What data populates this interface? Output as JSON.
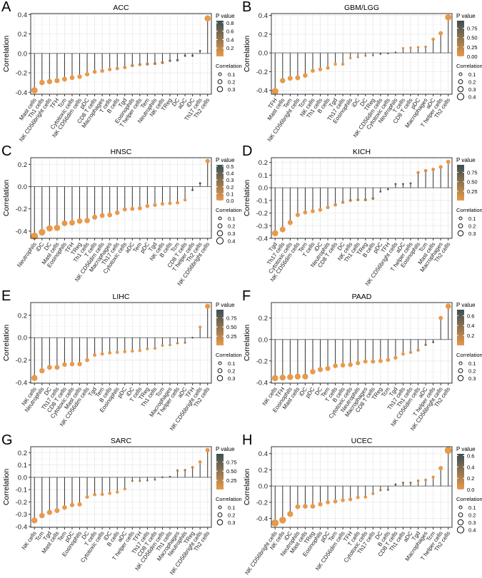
{
  "chart_data": [
    {
      "type": "scatter",
      "subtype": "lollipop",
      "letter": "A",
      "title": "ACC",
      "ylabel": "Correlation",
      "ylim": [
        -0.42,
        0.41
      ],
      "yticks": [
        -0.4,
        -0.2,
        0.0,
        0.2,
        0.4
      ],
      "categories": [
        "Mast cells",
        "Th1 cells",
        "NK CD56bright cells",
        "TFH",
        "Tcm",
        "Cytotoxic cells",
        "NK CD56dim cells",
        "pDC",
        "CD8 T cells",
        "Macrophages",
        "T cells",
        "B cells",
        "Tgd",
        "Eosinophils",
        "T helper cells",
        "Tem",
        "Neutrophils",
        "NK cells",
        "TReg",
        "DC",
        "aDC",
        "iDC",
        "Th17 cells",
        "Th2 cells"
      ],
      "values": [
        -0.38,
        -0.3,
        -0.29,
        -0.28,
        -0.265,
        -0.25,
        -0.24,
        -0.215,
        -0.19,
        -0.18,
        -0.165,
        -0.155,
        -0.145,
        -0.125,
        -0.115,
        -0.11,
        -0.105,
        -0.095,
        -0.075,
        -0.07,
        -0.025,
        -0.025,
        0.025,
        0.36
      ],
      "p_values": [
        0,
        0,
        0,
        0,
        0,
        0,
        0,
        0,
        0,
        0,
        0.01,
        0.02,
        0.05,
        0.15,
        0.2,
        0.25,
        0.25,
        0.3,
        0.45,
        0.5,
        0.8,
        0.8,
        0.75,
        0
      ],
      "p_legend": {
        "title": "P value",
        "max": 0.85,
        "ticks": [
          0.2,
          0.4,
          0.6,
          0.8
        ]
      },
      "size_legend": {
        "title": "Correlation",
        "values": [
          0.1,
          0.2,
          0.3
        ]
      }
    },
    {
      "type": "scatter",
      "subtype": "lollipop",
      "letter": "B",
      "title": "GBM/LGG",
      "ylabel": "Correlation",
      "ylim": [
        -0.44,
        0.42
      ],
      "yticks": [
        -0.4,
        -0.2,
        0.0,
        0.2,
        0.4
      ],
      "categories": [
        "TFH",
        "Mast cells",
        "Tem",
        "NK CD56bright cells",
        "Tcm",
        "NK cells",
        "Th1 cells",
        "B cells",
        "Tgd",
        "Th17 cells",
        "Eosinophils",
        "iDC",
        "DC",
        "TReg",
        "NK CD56dim cells",
        "Cytotoxic cells",
        "Neutrophils",
        "T cells",
        "CD8 T cells",
        "pDC",
        "Macrophages",
        "aDC",
        "T helper cells",
        "Th2 cells"
      ],
      "values": [
        -0.41,
        -0.295,
        -0.27,
        -0.265,
        -0.24,
        -0.19,
        -0.175,
        -0.16,
        -0.12,
        -0.12,
        -0.055,
        -0.045,
        -0.03,
        -0.025,
        -0.01,
        -0.005,
        0.005,
        0.05,
        0.055,
        0.06,
        0.065,
        0.145,
        0.21,
        0.38
      ],
      "p_values": [
        0,
        0,
        0,
        0,
        0,
        0,
        0,
        0,
        0,
        0,
        0.1,
        0.15,
        0.3,
        0.4,
        0.85,
        0.85,
        0.9,
        0.1,
        0.1,
        0.1,
        0.1,
        0,
        0,
        0
      ],
      "p_legend": {
        "title": "P value",
        "max": 0.95,
        "ticks": [
          0.0,
          0.25,
          0.5,
          0.75
        ]
      },
      "size_legend": {
        "title": "Correlation",
        "values": [
          0.1,
          0.2,
          0.3,
          0.4
        ]
      }
    },
    {
      "type": "scatter",
      "subtype": "lollipop",
      "letter": "C",
      "title": "HNSC",
      "ylabel": "Correlation",
      "ylim": [
        -0.465,
        0.26
      ],
      "yticks": [
        -0.4,
        -0.2,
        0.0,
        0.2
      ],
      "categories": [
        "Neutrophils",
        "iDC",
        "DC",
        "Mast cells",
        "Eosinophils",
        "TFH",
        "TReg",
        "Th1 cells",
        "T cells",
        "NK CD56dim cells",
        "Macrophages",
        "Th17 cells",
        "Cytotoxic cells",
        "aDC",
        "Tem",
        "pDC",
        "Tgd",
        "NK cells",
        "B cells",
        "Tcm",
        "CD8 T cells",
        "T helper cells",
        "Th2 cells",
        "NK CD56bright cells"
      ],
      "values": [
        -0.445,
        -0.41,
        -0.375,
        -0.37,
        -0.33,
        -0.325,
        -0.31,
        -0.305,
        -0.275,
        -0.26,
        -0.255,
        -0.235,
        -0.205,
        -0.2,
        -0.195,
        -0.175,
        -0.165,
        -0.155,
        -0.15,
        -0.145,
        -0.12,
        -0.03,
        0.03,
        0.23
      ],
      "p_values": [
        0,
        0,
        0,
        0,
        0,
        0,
        0,
        0,
        0,
        0,
        0,
        0,
        0,
        0,
        0,
        0,
        0,
        0,
        0,
        0,
        0,
        0.45,
        0.5,
        0
      ],
      "p_legend": {
        "title": "P value",
        "max": 0.52,
        "ticks": [
          0.0,
          0.1,
          0.2,
          0.3,
          0.4,
          0.5
        ]
      },
      "size_legend": {
        "title": "Correlation",
        "values": [
          0.1,
          0.2,
          0.3,
          0.4
        ]
      }
    },
    {
      "type": "scatter",
      "subtype": "lollipop",
      "letter": "D",
      "title": "KICH",
      "ylabel": "Correlation",
      "ylim": [
        -0.4,
        0.238
      ],
      "yticks": [
        -0.4,
        -0.3,
        -0.2,
        -0.1,
        0.0,
        0.1,
        0.2
      ],
      "categories": [
        "Tgd",
        "Th17 cells",
        "Cytotoxic cells",
        "NK CD56dim cells",
        "Tem",
        "T cells",
        "iDC",
        "Neutrophils",
        "CD8 T cells",
        "DC",
        "NK cells",
        "Th1 cells",
        "TReg",
        "B cells",
        "pDC",
        "TFH",
        "NK CD56bright cells",
        "aDC",
        "T helper cells",
        "Eosinophils",
        "Tcm",
        "Mast cells",
        "Macrophages",
        "Th2 cells"
      ],
      "values": [
        -0.36,
        -0.33,
        -0.275,
        -0.215,
        -0.195,
        -0.185,
        -0.175,
        -0.155,
        -0.135,
        -0.115,
        -0.1,
        -0.095,
        -0.095,
        -0.085,
        -0.03,
        -0.012,
        0.03,
        0.03,
        0.035,
        0.12,
        0.135,
        0.145,
        0.165,
        0.205
      ],
      "p_values": [
        0,
        0,
        0,
        0,
        0,
        0,
        0,
        0.05,
        0.1,
        0.15,
        0.25,
        0.25,
        0.3,
        0.35,
        0.7,
        0.9,
        0.75,
        0.75,
        0.7,
        0.1,
        0.08,
        0.05,
        0.04,
        0
      ],
      "p_legend": {
        "title": "P value",
        "max": 0.95,
        "ticks": [
          0.25,
          0.5,
          0.75
        ]
      },
      "size_legend": {
        "title": "Correlation",
        "values": [
          0.1,
          0.2,
          0.3
        ]
      }
    },
    {
      "type": "scatter",
      "subtype": "lollipop",
      "letter": "E",
      "title": "LIHC",
      "ylabel": "Correlation",
      "ylim": [
        -0.406,
        0.313
      ],
      "yticks": [
        -0.4,
        -0.2,
        0.0,
        0.2
      ],
      "categories": [
        "NK cells",
        "Neutrophils",
        "DC",
        "Th17 cells",
        "CD8 T cells",
        "Cytotoxic cells",
        "Mast cells",
        "NK CD56dim cells",
        "Tgd",
        "Tem",
        "B cells",
        "Eosinophils",
        "pDC",
        "iDC",
        "T cells",
        "TReg",
        "Th1 cells",
        "Tcm",
        "Macrophages",
        "T helper cells",
        "aDC",
        "TFH",
        "NK CD56bright cells",
        "Th2 cells"
      ],
      "values": [
        -0.36,
        -0.295,
        -0.265,
        -0.265,
        -0.24,
        -0.235,
        -0.235,
        -0.2,
        -0.155,
        -0.145,
        -0.135,
        -0.13,
        -0.125,
        -0.12,
        -0.115,
        -0.1,
        -0.095,
        -0.07,
        -0.065,
        -0.05,
        -0.045,
        0.0,
        0.095,
        0.28
      ],
      "p_values": [
        0,
        0,
        0,
        0,
        0,
        0,
        0,
        0,
        0,
        0,
        0,
        0,
        0,
        0,
        0,
        0.02,
        0.02,
        0.1,
        0.15,
        0.3,
        0.35,
        0.95,
        0.02,
        0
      ],
      "p_legend": {
        "title": "P value",
        "max": 0.97,
        "ticks": [
          0.25,
          0.5,
          0.75
        ]
      },
      "size_legend": {
        "title": "Correlation",
        "values": [
          0.1,
          0.2,
          0.3
        ]
      }
    },
    {
      "type": "scatter",
      "subtype": "lollipop",
      "letter": "F",
      "title": "PAAD",
      "ylabel": "Correlation",
      "ylim": [
        -0.407,
        0.344
      ],
      "yticks": [
        -0.4,
        -0.2,
        0.0,
        0.2
      ],
      "categories": [
        "NK cells",
        "TFH",
        "Eosinophils",
        "Mast cells",
        "iDC",
        "pDC",
        "DC",
        "Tem",
        "T cells",
        "B cells",
        "Cytotoxic cells",
        "Neutrophils",
        "Macrophages",
        "CD8 T cells",
        "TReg",
        "Tcm",
        "Tgd",
        "Th17 cells",
        "Th1 cells",
        "NK CD56dim cells",
        "aDC",
        "T helper cells",
        "NK CD56bright cells",
        "Th2 cells"
      ],
      "values": [
        -0.36,
        -0.355,
        -0.35,
        -0.345,
        -0.345,
        -0.3,
        -0.28,
        -0.27,
        -0.245,
        -0.24,
        -0.235,
        -0.22,
        -0.205,
        -0.205,
        -0.2,
        -0.19,
        -0.17,
        -0.135,
        -0.12,
        -0.1,
        -0.05,
        -0.025,
        0.2,
        0.31
      ],
      "p_values": [
        0,
        0,
        0,
        0,
        0,
        0,
        0,
        0,
        0,
        0,
        0,
        0,
        0,
        0,
        0,
        0,
        0,
        0.01,
        0.03,
        0.1,
        0.35,
        0.6,
        0,
        0
      ],
      "p_legend": {
        "title": "P value",
        "max": 0.72,
        "ticks": [
          0.2,
          0.4,
          0.6
        ]
      },
      "size_legend": {
        "title": "Correlation",
        "values": [
          0.1,
          0.2,
          0.3
        ]
      }
    },
    {
      "type": "scatter",
      "subtype": "lollipop",
      "letter": "G",
      "title": "SARC",
      "ylabel": "Correlation",
      "ylim": [
        -0.406,
        0.248
      ],
      "yticks": [
        -0.4,
        -0.3,
        -0.2,
        -0.1,
        0.0,
        0.1,
        0.2
      ],
      "categories": [
        "NK cells",
        "Tcm",
        "Tgd",
        "Mast cells",
        "Tem",
        "pDC",
        "Eosinophils",
        "DC",
        "T cells",
        "Cytotoxic cells",
        "iDC",
        "B cells",
        "aDC",
        "T helper cells",
        "TFH",
        "Th17 cells",
        "CD8 T cells",
        "NK CD56dim cells",
        "Th1 cells",
        "Macrophages",
        "Neutrophils",
        "TReg",
        "NK CD56bright cells",
        "Th2 cells"
      ],
      "values": [
        -0.35,
        -0.31,
        -0.285,
        -0.27,
        -0.245,
        -0.225,
        -0.22,
        -0.16,
        -0.14,
        -0.138,
        -0.13,
        -0.12,
        -0.095,
        -0.03,
        -0.03,
        -0.025,
        -0.02,
        0.0,
        0.005,
        0.055,
        0.058,
        0.08,
        0.125,
        0.22
      ],
      "p_values": [
        0,
        0,
        0,
        0,
        0,
        0,
        0,
        0,
        0,
        0,
        0,
        0,
        0.02,
        0.45,
        0.45,
        0.5,
        0.6,
        0.95,
        0.9,
        0.3,
        0.3,
        0.2,
        0.01,
        0
      ],
      "p_legend": {
        "title": "P value",
        "max": 0.97,
        "ticks": [
          0.25,
          0.5,
          0.75
        ]
      },
      "size_legend": {
        "title": "Correlation",
        "values": [
          0.1,
          0.2,
          0.3
        ]
      }
    },
    {
      "type": "scatter",
      "subtype": "lollipop",
      "letter": "H",
      "title": "UCEC",
      "ylabel": "Correlation",
      "ylim": [
        -0.509,
        0.485
      ],
      "yticks": [
        -0.4,
        -0.2,
        0.0,
        0.2,
        0.4
      ],
      "categories": [
        "NK CD56bright cells",
        "NK cells",
        "iDC",
        "Neutrophils",
        "Mast cells",
        "TReg",
        "Eosinophils",
        "pDC",
        "Tem",
        "NK CD56dim cells",
        "TFH",
        "T cells",
        "Cytotoxic cells",
        "Th17 cells",
        "DC",
        "B cells",
        "CD8 T cells",
        "Th1 cells",
        "aDC",
        "Tgd",
        "Macrophages",
        "Tcm",
        "T helper cells",
        "Th2 cells"
      ],
      "values": [
        -0.455,
        -0.42,
        -0.345,
        -0.255,
        -0.25,
        -0.25,
        -0.225,
        -0.2,
        -0.19,
        -0.175,
        -0.165,
        -0.14,
        -0.135,
        -0.095,
        -0.05,
        -0.045,
        0.02,
        0.04,
        0.04,
        0.065,
        0.075,
        0.11,
        0.22,
        0.44
      ],
      "p_values": [
        0,
        0,
        0,
        0,
        0,
        0,
        0,
        0,
        0,
        0,
        0,
        0,
        0,
        0.02,
        0.25,
        0.3,
        0.6,
        0.35,
        0.35,
        0.15,
        0.1,
        0.02,
        0,
        0
      ],
      "p_legend": {
        "title": "P value",
        "max": 0.63,
        "ticks": [
          0.0,
          0.2,
          0.4,
          0.6
        ]
      },
      "size_legend": {
        "title": "Correlation",
        "values": [
          0.1,
          0.2,
          0.3,
          0.4
        ]
      }
    }
  ],
  "colors": {
    "low_p": "#E8994A",
    "high_p": "#3B4F55",
    "stem": "#333333",
    "grid": "#EBEBEB"
  }
}
